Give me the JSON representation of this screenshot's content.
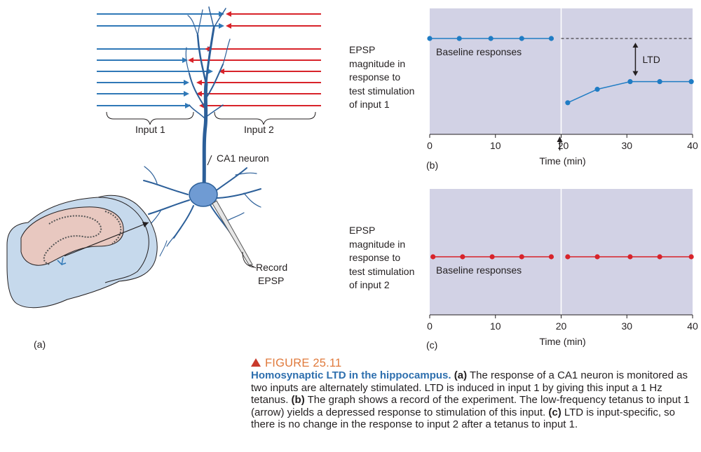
{
  "panel_a": {
    "label": "(a)",
    "input1_label": "Input 1",
    "input2_label": "Input 2",
    "neuron_label": "CA1 neuron",
    "record_label_line1": "Record",
    "record_label_line2": "EPSP",
    "colors": {
      "input1": "#2f78b7",
      "input2": "#d8232a",
      "neuron": "#3d6ea8"
    }
  },
  "panel_b": {
    "label": "(b)",
    "ylabel_lines": [
      "EPSP",
      "magnitude in",
      "response to",
      "test stimulation",
      "of input 1"
    ],
    "annotation": "Baseline responses",
    "ltd_label": "LTD"
  },
  "panel_c": {
    "label": "(c)",
    "ylabel_lines": [
      "EPSP",
      "magnitude in",
      "response to",
      "test stimulation",
      "of input 2"
    ],
    "annotation": "Baseline responses"
  },
  "caption": {
    "figure_number": "FIGURE 25.11",
    "title": "Homosynaptic LTD in the hippocampus.",
    "part_a": "(a)",
    "text_a": " The response of a CA1 neuron is monitored as two inputs are alternately stimulated. LTD is induced in input 1 by giving this input a 1 Hz tetanus. ",
    "part_b": "(b)",
    "text_b": " The graph shows a record of the experiment. The low-frequency tetanus to input 1 (arrow) yields a depressed response to stimulation of this input. ",
    "part_c": "(c)",
    "text_c": " LTD is input-specific, so there is no change in the response to input 2 after a tetanus to input 1."
  },
  "chart_data": [
    {
      "type": "line",
      "panel": "b",
      "xlabel": "Time (min)",
      "ylabel": "EPSP magnitude in response to test stimulation of input 1",
      "xlim": [
        0,
        40
      ],
      "xticks": [
        0,
        10,
        20,
        30,
        40
      ],
      "tetanus_time": 20,
      "series": [
        {
          "name": "Baseline responses",
          "x": [
            0,
            4.5,
            9.3,
            14,
            18.5
          ],
          "y": [
            1.0,
            1.0,
            1.0,
            1.0,
            1.0
          ]
        },
        {
          "x": [
            21,
            25.5,
            30.5,
            35,
            39.8
          ],
          "y": [
            0.33,
            0.47,
            0.55,
            0.55,
            0.55
          ]
        }
      ],
      "baseline_reference": 1.0,
      "color": "#1f7cc4",
      "background": "#d2d2e5"
    },
    {
      "type": "line",
      "panel": "c",
      "xlabel": "Time (min)",
      "ylabel": "EPSP magnitude in response to test stimulation of input 2",
      "xlim": [
        0,
        40
      ],
      "xticks": [
        0,
        10,
        20,
        30,
        40
      ],
      "series": [
        {
          "name": "Baseline responses",
          "x": [
            0.5,
            5,
            9.5,
            14,
            18.5
          ],
          "y": [
            1.0,
            1.0,
            1.0,
            1.0,
            1.0
          ]
        },
        {
          "x": [
            21,
            25.5,
            30.5,
            35,
            39.8
          ],
          "y": [
            1.0,
            1.0,
            1.0,
            1.0,
            1.0
          ]
        }
      ],
      "color": "#d8232a",
      "background": "#d2d2e5"
    }
  ]
}
